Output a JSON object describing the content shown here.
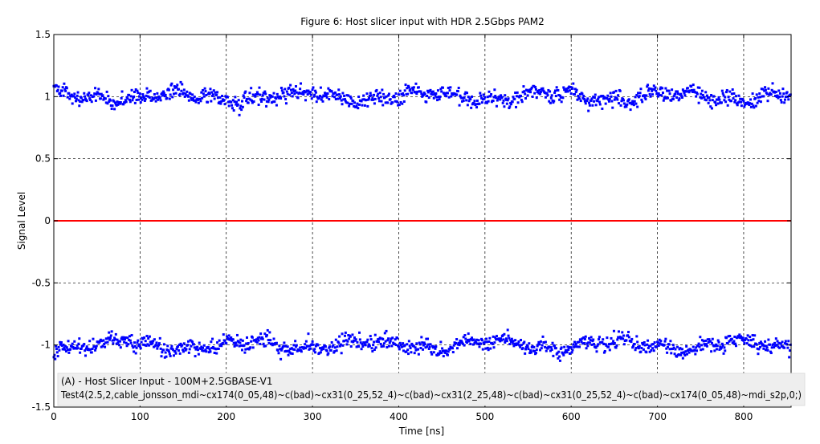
{
  "chart_data": {
    "type": "scatter",
    "title": "Figure 6: Host slicer input with HDR 2.5Gbps PAM2",
    "xlabel": "Time [ns]",
    "ylabel": "Signal Level",
    "xlim": [
      0,
      855
    ],
    "ylim": [
      -1.5,
      1.5
    ],
    "xticks": [
      0,
      100,
      200,
      300,
      400,
      500,
      600,
      700,
      800
    ],
    "xtick_labels": [
      "0",
      "100",
      "200",
      "300",
      "400",
      "500",
      "600",
      "700",
      "800"
    ],
    "yticks": [
      -1.5,
      -1,
      -0.5,
      0,
      0.5,
      1,
      1.5
    ],
    "ytick_labels": [
      "-1.5",
      "-1",
      "-0.5",
      "0",
      "0.5",
      "1",
      "1.5"
    ],
    "grid": true,
    "series": [
      {
        "kind": "scatter",
        "color": "#0000ff",
        "levels": [
          1,
          -1
        ],
        "x_range": [
          0,
          855
        ],
        "sample_spacing_ns": 0.8,
        "spread": 0.1
      },
      {
        "kind": "line",
        "color": "#ff0000",
        "x": [
          0,
          855
        ],
        "y": [
          0,
          0
        ]
      }
    ],
    "annotation": {
      "line1": "(A) - Host Slicer Input  -  100M+2.5GBASE-V1",
      "line2": "Test4(2.5,2,cable_jonsson_mdi~cx174(0_05,48)~c(bad)~cx31(0_25,52_4)~c(bad)~cx31(2_25,48)~c(bad)~cx31(0_25,52_4)~c(bad)~cx174(0_05,48)~mdi_s2p,0;)"
    }
  }
}
